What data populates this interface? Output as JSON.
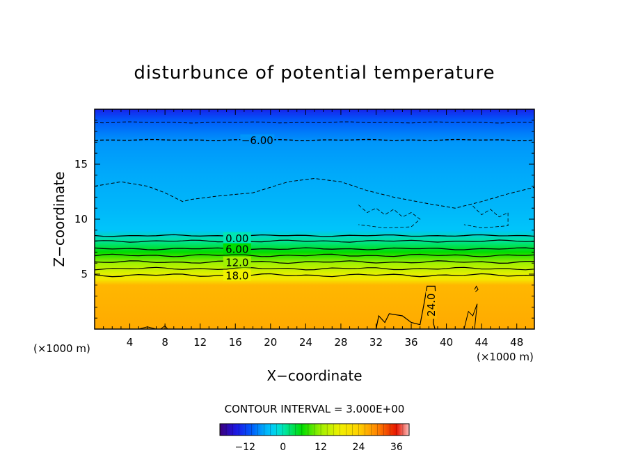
{
  "chart_data": {
    "type": "heatmap",
    "title": "disturbunce of potential temperature",
    "xlabel": "X−coordinate",
    "ylabel": "Z−coordinate",
    "x_unit_left": "(×1000 m)",
    "x_unit_right": "(×1000 m)",
    "xlim": [
      0,
      50
    ],
    "ylim": [
      0,
      20
    ],
    "x_ticks": [
      4,
      8,
      12,
      16,
      20,
      24,
      28,
      32,
      36,
      40,
      44,
      48
    ],
    "y_ticks": [
      5,
      10,
      15
    ],
    "field_profile": [
      {
        "z": 0.0,
        "value": 27
      },
      {
        "z": 4.0,
        "value": 26
      },
      {
        "z": 4.5,
        "value": 20
      },
      {
        "z": 5.0,
        "value": 17
      },
      {
        "z": 6.0,
        "value": 12
      },
      {
        "z": 7.0,
        "value": 6
      },
      {
        "z": 8.0,
        "value": 1
      },
      {
        "z": 9.0,
        "value": -4
      },
      {
        "z": 11.0,
        "value": -5
      },
      {
        "z": 14.0,
        "value": -6
      },
      {
        "z": 17.0,
        "value": -7
      },
      {
        "z": 19.0,
        "value": -10
      },
      {
        "z": 20.0,
        "value": -14
      }
    ],
    "contour_labels": [
      {
        "text": "−6.00",
        "x": 18.5,
        "z": 17.2
      },
      {
        "text": "0.00",
        "x": 16.2,
        "z": 8.3
      },
      {
        "text": "6.00",
        "x": 16.2,
        "z": 7.3
      },
      {
        "text": "12.0",
        "x": 16.2,
        "z": 6.1
      },
      {
        "text": "18.0",
        "x": 16.2,
        "z": 4.9
      },
      {
        "text": "24.0",
        "x": 38.3,
        "z": 2.2
      }
    ],
    "contour_interval_text": "CONTOUR INTERVAL = 3.000E+00",
    "colorbar": {
      "range": [
        -20,
        40
      ],
      "tick_labels": [
        "−12",
        "0",
        "12",
        "24",
        "36"
      ],
      "tick_values": [
        -12,
        0,
        12,
        24,
        36
      ]
    },
    "grid": false
  }
}
